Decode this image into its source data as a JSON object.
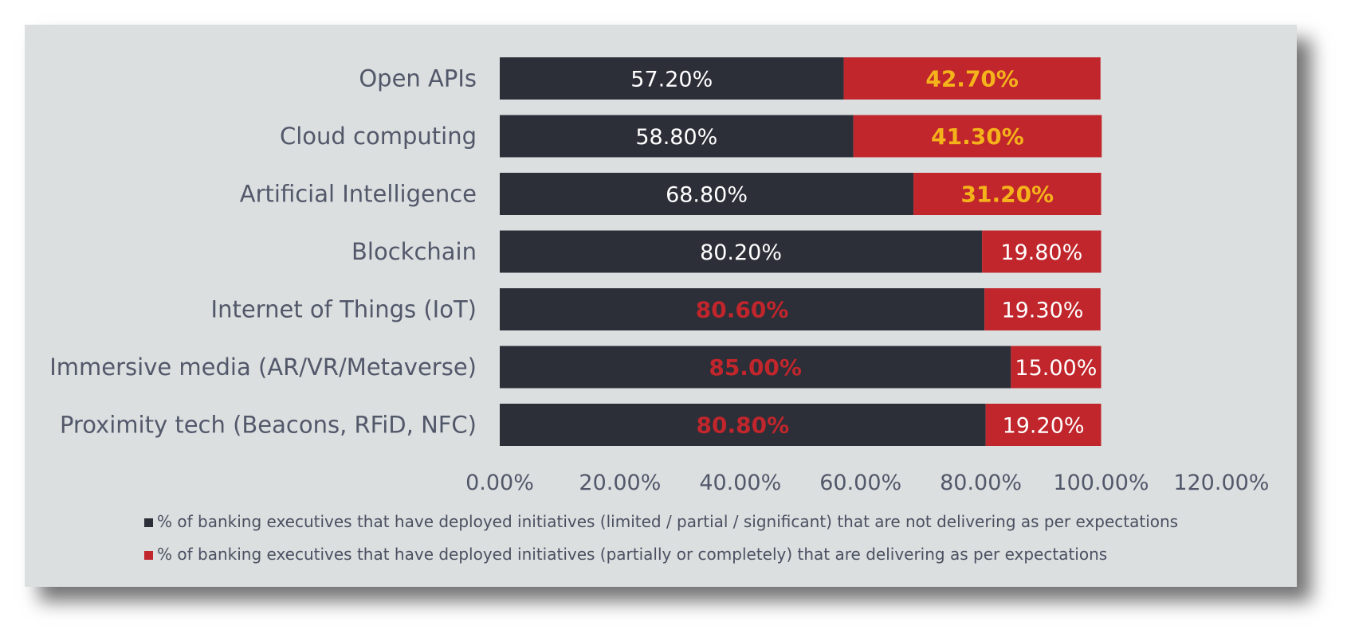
{
  "chart_data": {
    "type": "bar",
    "orientation": "horizontal",
    "stacked": true,
    "categories": [
      "Open APIs",
      "Cloud computing",
      "Artificial Intelligence",
      "Blockchain",
      "Internet of Things (IoT)",
      "Immersive media (AR/VR/Metaverse)",
      "Proximity tech (Beacons, RFiD, NFC)"
    ],
    "series": [
      {
        "name": "% of banking executives that have deployed initiatives (limited / partial / significant) that are not delivering as per expectations",
        "color": "#2c2e38",
        "values": [
          57.2,
          58.8,
          68.8,
          80.2,
          80.6,
          85.0,
          80.8
        ],
        "labels": [
          "57.20%",
          "58.80%",
          "68.80%",
          "80.20%",
          "80.60%",
          "85.00%",
          "80.80%"
        ],
        "label_colors": [
          "#ffffff",
          "#ffffff",
          "#ffffff",
          "#ffffff",
          "#c0262b",
          "#c0262b",
          "#c0262b"
        ],
        "label_bold": [
          false,
          false,
          false,
          false,
          true,
          true,
          true
        ]
      },
      {
        "name": "% of banking executives that have deployed initiatives (partially or completely) that are delivering as per expectations",
        "color": "#c0262b",
        "values": [
          42.7,
          41.3,
          31.2,
          19.8,
          19.3,
          15.0,
          19.2
        ],
        "labels": [
          "42.70%",
          "41.30%",
          "31.20%",
          "19.80%",
          "19.30%",
          "15.00%",
          "19.20%"
        ],
        "label_colors": [
          "#f5b31b",
          "#f5b31b",
          "#f5b31b",
          "#ffffff",
          "#ffffff",
          "#ffffff",
          "#ffffff"
        ],
        "label_bold": [
          true,
          true,
          true,
          false,
          false,
          false,
          false
        ]
      }
    ],
    "xlim": [
      0,
      120
    ],
    "x_ticks": [
      0,
      20,
      40,
      60,
      80,
      100,
      120
    ],
    "x_tick_labels": [
      "0.00%",
      "20.00%",
      "40.00%",
      "60.00%",
      "80.00%",
      "100.00%",
      "120.00%"
    ],
    "grid": false,
    "legend_position": "bottom",
    "background_color": "#dbdfe0"
  }
}
